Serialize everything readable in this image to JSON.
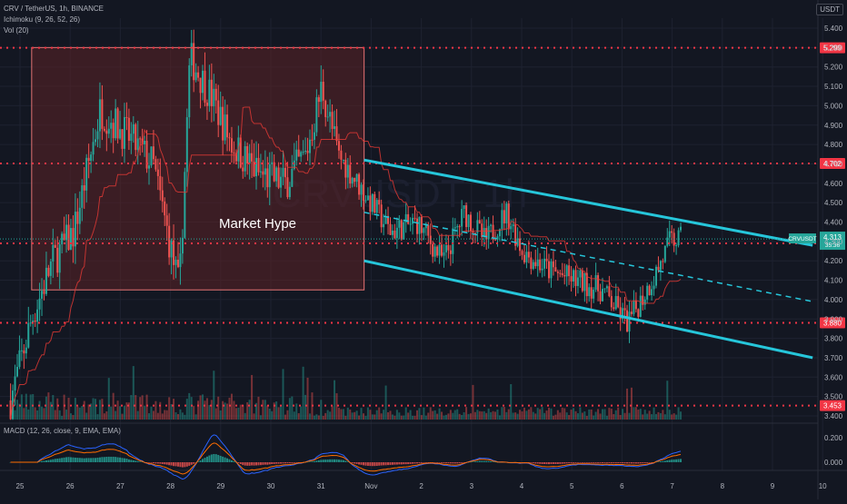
{
  "legend": {
    "symbol": "CRV / TetherUS, 1h, BINANCE",
    "ichimoku": "Ichimoku (9, 26, 52, 26)",
    "vol": "Vol (20)",
    "macd": "MACD (12, 26, close, 9, EMA, EMA)"
  },
  "currency": "USDT",
  "annotation": "Market Hype",
  "watermark": "CRVUSDT, 1h",
  "colors": {
    "bg": "#131722",
    "up": "#26a69a",
    "down": "#ef5350",
    "level": "#f23645",
    "channel": "#26c6da",
    "box_fill": "#5c2226"
  },
  "chart_data": {
    "type": "candlestick",
    "x": [
      24.8,
      25.2,
      25.6,
      26.0,
      26.5,
      27.0,
      27.5,
      28.0,
      28.2,
      28.6,
      29.0,
      29.5,
      30.0,
      30.4,
      30.7,
      31.0,
      31.5,
      32.0,
      32.5,
      33.0,
      33.4,
      33.8,
      34.2,
      34.5,
      35.0,
      35.5,
      36.0,
      36.5,
      37.0,
      37.3,
      37.5
    ],
    "close": [
      3.48,
      3.9,
      4.2,
      4.35,
      4.98,
      4.85,
      4.7,
      4.05,
      5.25,
      5.05,
      4.8,
      4.65,
      4.6,
      4.75,
      5.1,
      4.75,
      4.55,
      4.35,
      4.4,
      4.2,
      4.45,
      4.3,
      4.45,
      4.25,
      4.15,
      4.1,
      4.05,
      3.88,
      4.12,
      4.3,
      4.313
    ],
    "x_ticks": [
      "25",
      "26",
      "27",
      "28",
      "29",
      "30",
      "31",
      "Nov",
      "2",
      "3",
      "4",
      "5",
      "6",
      "7",
      "8",
      "9",
      "10"
    ],
    "price_axis": [
      "5.400",
      "5.300",
      "5.200",
      "5.100",
      "5.000",
      "4.900",
      "4.800",
      "4.700",
      "4.600",
      "4.500",
      "4.400",
      "4.300",
      "4.200",
      "4.100",
      "4.000",
      "3.900",
      "3.800",
      "3.700",
      "3.600",
      "3.500",
      "3.400"
    ],
    "price_range": [
      3.38,
      5.5
    ],
    "levels": [
      {
        "value": 5.299,
        "label": "5.299"
      },
      {
        "value": 4.702,
        "label": "4.702"
      },
      {
        "value": 4.29,
        "label": "4.290"
      },
      {
        "value": 3.88,
        "label": "3.880"
      },
      {
        "value": 3.453,
        "label": "3.453"
      }
    ],
    "last_price": {
      "label": "CRVUSDT",
      "value": "4.313",
      "sub": "35:36"
    },
    "channel": {
      "upper": [
        [
          31.5,
          4.72
        ],
        [
          40.0,
          4.28
        ]
      ],
      "lower": [
        [
          31.5,
          4.2
        ],
        [
          40.0,
          3.7
        ]
      ],
      "mid": [
        [
          31.5,
          4.45
        ],
        [
          40.0,
          3.99
        ]
      ]
    },
    "box": {
      "x": [
        25.2,
        31.5
      ],
      "y": [
        4.05,
        5.3
      ]
    },
    "macd_axis": [
      "0.200",
      "0.000"
    ],
    "macd_range": [
      -0.1,
      0.26
    ]
  }
}
